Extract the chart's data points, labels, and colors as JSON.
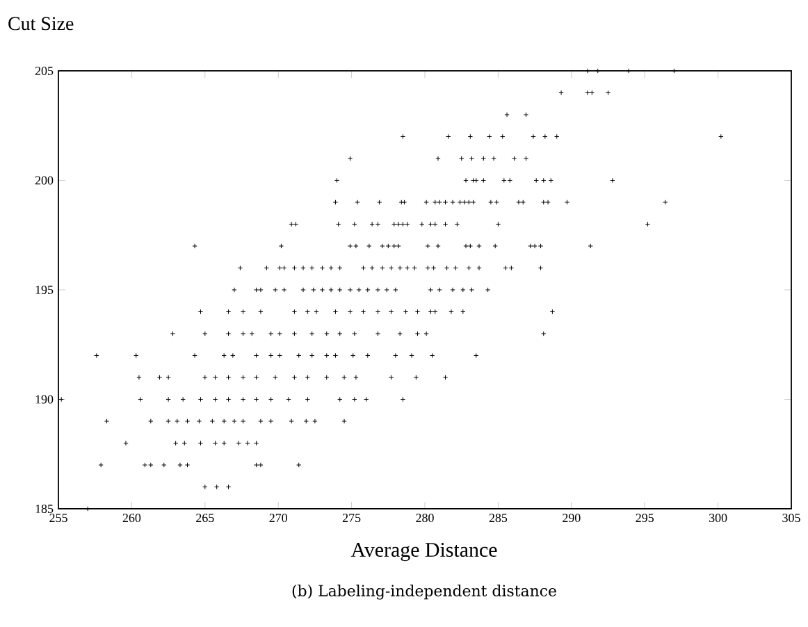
{
  "chart_data": {
    "type": "scatter",
    "ylabel": "Cut Size",
    "xlabel": "Average Distance",
    "annotations": [
      "(b) Labeling-independent distance"
    ],
    "xlim": [
      255,
      305
    ],
    "ylim": [
      185,
      205
    ],
    "xticks": [
      255,
      260,
      265,
      270,
      275,
      280,
      285,
      290,
      295,
      300,
      305
    ],
    "yticks": [
      185,
      190,
      195,
      200,
      205
    ],
    "grid": false,
    "marker": "cross",
    "series": [
      {
        "color": "#000000",
        "x": [
          291.1,
          291.8,
          293.9,
          297.0,
          289.3,
          291.1,
          291.4,
          292.5,
          285.6,
          286.9,
          278.5,
          281.6,
          283.1,
          284.4,
          285.3,
          287.4,
          288.2,
          289.0,
          300.2,
          274.9,
          280.9,
          282.5,
          283.2,
          284.0,
          284.7,
          286.1,
          286.9,
          274.0,
          282.8,
          283.3,
          283.5,
          284.0,
          285.4,
          285.8,
          287.6,
          288.1,
          288.6,
          292.8,
          273.9,
          275.4,
          276.9,
          278.4,
          278.6,
          280.1,
          280.7,
          281.0,
          281.4,
          281.9,
          282.4,
          282.7,
          283.0,
          283.3,
          284.5,
          284.9,
          286.4,
          286.7,
          288.1,
          288.4,
          289.7,
          296.4,
          270.9,
          271.2,
          274.1,
          275.2,
          276.4,
          276.8,
          277.9,
          278.2,
          278.5,
          278.8,
          279.8,
          280.4,
          280.7,
          281.4,
          282.2,
          285.0,
          295.2,
          264.3,
          270.2,
          274.9,
          275.3,
          276.2,
          277.1,
          277.5,
          277.9,
          278.2,
          280.2,
          280.9,
          282.8,
          283.1,
          283.7,
          284.8,
          287.2,
          287.5,
          287.9,
          291.3,
          267.4,
          269.2,
          270.1,
          270.4,
          271.1,
          271.7,
          272.3,
          273.0,
          273.6,
          274.2,
          275.8,
          276.4,
          277.1,
          277.7,
          278.3,
          278.8,
          279.3,
          280.2,
          280.6,
          281.5,
          282.1,
          283.0,
          283.7,
          285.5,
          285.9,
          287.9,
          267.0,
          268.5,
          268.8,
          269.8,
          270.4,
          271.7,
          272.4,
          273.0,
          273.6,
          274.2,
          274.9,
          275.5,
          276.1,
          276.8,
          277.4,
          278.0,
          280.4,
          281.0,
          281.9,
          282.6,
          283.2,
          284.3,
          264.7,
          266.6,
          267.6,
          268.8,
          271.1,
          272.0,
          272.6,
          273.9,
          274.9,
          275.8,
          276.8,
          277.7,
          278.7,
          279.5,
          280.4,
          280.7,
          281.8,
          282.6,
          288.7,
          262.8,
          265.0,
          266.6,
          267.6,
          268.2,
          269.5,
          270.1,
          271.1,
          272.3,
          273.3,
          274.2,
          275.2,
          276.8,
          278.3,
          279.5,
          280.1,
          288.1,
          257.6,
          260.3,
          264.3,
          266.3,
          266.9,
          268.5,
          269.5,
          270.1,
          271.4,
          272.3,
          273.3,
          273.9,
          275.1,
          276.1,
          278.0,
          279.1,
          280.5,
          283.5,
          260.5,
          261.9,
          262.5,
          265.0,
          265.7,
          266.6,
          267.6,
          268.5,
          269.8,
          271.1,
          272.0,
          273.3,
          274.5,
          275.3,
          277.7,
          279.4,
          281.4,
          255.2,
          260.6,
          262.5,
          263.5,
          264.7,
          265.7,
          266.6,
          267.6,
          268.5,
          269.5,
          270.7,
          272.0,
          274.2,
          275.2,
          276.0,
          278.5,
          258.3,
          261.3,
          262.5,
          263.1,
          263.8,
          264.6,
          265.5,
          266.3,
          267.0,
          267.6,
          268.8,
          269.5,
          270.9,
          271.9,
          272.5,
          274.5,
          259.6,
          263.0,
          263.6,
          264.7,
          265.7,
          266.3,
          267.3,
          267.9,
          268.5,
          257.9,
          260.9,
          261.3,
          262.2,
          263.3,
          263.8,
          268.5,
          268.8,
          271.4,
          265.0,
          265.8,
          266.6,
          257.0
        ],
        "values": [
          205,
          205,
          205,
          205,
          204,
          204,
          204,
          204,
          203,
          203,
          202,
          202,
          202,
          202,
          202,
          202,
          202,
          202,
          202,
          201,
          201,
          201,
          201,
          201,
          201,
          201,
          201,
          200,
          200,
          200,
          200,
          200,
          200,
          200,
          200,
          200,
          200,
          200,
          199,
          199,
          199,
          199,
          199,
          199,
          199,
          199,
          199,
          199,
          199,
          199,
          199,
          199,
          199,
          199,
          199,
          199,
          199,
          199,
          199,
          199,
          198,
          198,
          198,
          198,
          198,
          198,
          198,
          198,
          198,
          198,
          198,
          198,
          198,
          198,
          198,
          198,
          198,
          197,
          197,
          197,
          197,
          197,
          197,
          197,
          197,
          197,
          197,
          197,
          197,
          197,
          197,
          197,
          197,
          197,
          197,
          197,
          196,
          196,
          196,
          196,
          196,
          196,
          196,
          196,
          196,
          196,
          196,
          196,
          196,
          196,
          196,
          196,
          196,
          196,
          196,
          196,
          196,
          196,
          196,
          196,
          196,
          196,
          195,
          195,
          195,
          195,
          195,
          195,
          195,
          195,
          195,
          195,
          195,
          195,
          195,
          195,
          195,
          195,
          195,
          195,
          195,
          195,
          195,
          195,
          194,
          194,
          194,
          194,
          194,
          194,
          194,
          194,
          194,
          194,
          194,
          194,
          194,
          194,
          194,
          194,
          194,
          194,
          194,
          193,
          193,
          193,
          193,
          193,
          193,
          193,
          193,
          193,
          193,
          193,
          193,
          193,
          193,
          193,
          193,
          193,
          192,
          192,
          192,
          192,
          192,
          192,
          192,
          192,
          192,
          192,
          192,
          192,
          192,
          192,
          192,
          192,
          192,
          192,
          191,
          191,
          191,
          191,
          191,
          191,
          191,
          191,
          191,
          191,
          191,
          191,
          191,
          191,
          191,
          191,
          191,
          190,
          190,
          190,
          190,
          190,
          190,
          190,
          190,
          190,
          190,
          190,
          190,
          190,
          190,
          190,
          190,
          189,
          189,
          189,
          189,
          189,
          189,
          189,
          189,
          189,
          189,
          189,
          189,
          189,
          189,
          189,
          189,
          188,
          188,
          188,
          188,
          188,
          188,
          188,
          188,
          188,
          187,
          187,
          187,
          187,
          187,
          187,
          187,
          187,
          187,
          186,
          186,
          186,
          185
        ]
      }
    ]
  }
}
